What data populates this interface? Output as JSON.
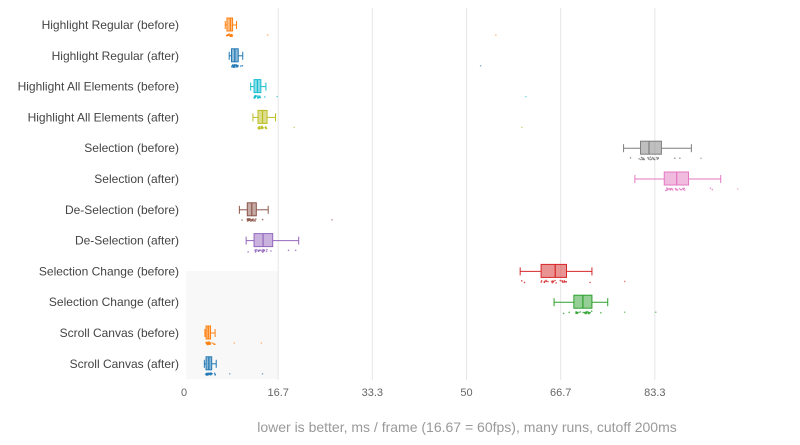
{
  "chart_data": {
    "type": "box",
    "xlabel": "lower is better, ms / frame (16.67 = 60fps), many runs, cutoff 200ms",
    "xlim": [
      0,
      100
    ],
    "x_ticks": [
      {
        "value": 0,
        "label": "0"
      },
      {
        "value": 16.67,
        "label": "16.7"
      },
      {
        "value": 33.33,
        "label": "33.3"
      },
      {
        "value": 50,
        "label": "50"
      },
      {
        "value": 66.67,
        "label": "66.7"
      },
      {
        "value": 83.33,
        "label": "83.3"
      }
    ],
    "grid": true,
    "categories": [
      {
        "label": "Highlight Regular (before)",
        "color": "#ff7f0e",
        "whisker_low": 7.3,
        "q1": 7.6,
        "median": 8.2,
        "q3": 8.6,
        "whisker_high": 9.3,
        "outliers": [
          14.8,
          55.2
        ]
      },
      {
        "label": "Highlight Regular (after)",
        "color": "#1f77b4",
        "whisker_low": 8.0,
        "q1": 8.4,
        "median": 9.0,
        "q3": 9.6,
        "whisker_high": 10.4,
        "outliers": [
          52.5
        ]
      },
      {
        "label": "Highlight All Elements (before)",
        "color": "#17becf",
        "whisker_low": 11.8,
        "q1": 12.4,
        "median": 13.0,
        "q3": 13.6,
        "whisker_high": 14.5,
        "outliers": [
          16.5,
          60.5
        ]
      },
      {
        "label": "Highlight All Elements (after)",
        "color": "#bcbd22",
        "whisker_low": 12.2,
        "q1": 13.1,
        "median": 13.9,
        "q3": 14.7,
        "whisker_high": 16.2,
        "outliers": [
          19.5,
          59.8
        ]
      },
      {
        "label": "Selection (before)",
        "color": "#7f7f7f",
        "whisker_low": 77.8,
        "q1": 80.8,
        "median": 82.3,
        "q3": 84.5,
        "whisker_high": 89.8,
        "outliers": [
          91.5
        ]
      },
      {
        "label": "Selection (after)",
        "color": "#e377c2",
        "whisker_low": 79.8,
        "q1": 85.0,
        "median": 87.2,
        "q3": 89.3,
        "whisker_high": 95.0,
        "outliers": [
          98.0
        ]
      },
      {
        "label": "De-Selection (before)",
        "color": "#8c564b",
        "whisker_low": 9.8,
        "q1": 11.2,
        "median": 12.0,
        "q3": 12.8,
        "whisker_high": 14.9,
        "outliers": [
          26.2
        ]
      },
      {
        "label": "De-Selection (after)",
        "color": "#9467bd",
        "whisker_low": 11.0,
        "q1": 12.4,
        "median": 14.0,
        "q3": 15.7,
        "whisker_high": 20.3,
        "outliers": []
      },
      {
        "label": "Selection Change (before)",
        "color": "#d62728",
        "whisker_low": 59.5,
        "q1": 63.2,
        "median": 65.7,
        "q3": 67.7,
        "whisker_high": 72.2,
        "outliers": [
          78.0
        ]
      },
      {
        "label": "Selection Change (after)",
        "color": "#2ca02c",
        "whisker_low": 65.5,
        "q1": 69.0,
        "median": 70.6,
        "q3": 72.2,
        "whisker_high": 75.0,
        "outliers": [
          78.0,
          83.5
        ]
      },
      {
        "label": "Scroll Canvas (before)",
        "color": "#ff7f0e",
        "whisker_low": 3.7,
        "q1": 3.9,
        "median": 4.3,
        "q3": 4.7,
        "whisker_high": 5.5,
        "outliers": [
          8.9,
          13.7
        ]
      },
      {
        "label": "Scroll Canvas (after)",
        "color": "#1f77b4",
        "whisker_low": 3.6,
        "q1": 3.9,
        "median": 4.4,
        "q3": 4.9,
        "whisker_high": 5.7,
        "outliers": [
          8.1,
          13.9
        ]
      }
    ]
  }
}
